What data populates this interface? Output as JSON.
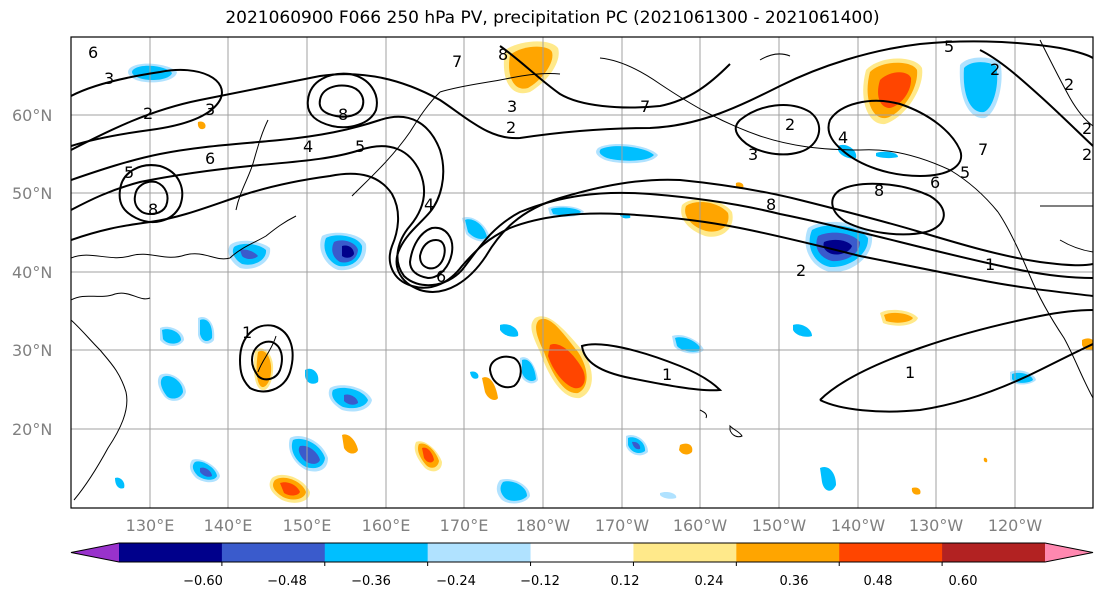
{
  "title": "2021060900 F066 250 hPa PV, precipitation PC (2021061300 - 2021061400)",
  "lat_labels": [
    "60°N",
    "50°N",
    "40°N",
    "30°N",
    "20°N"
  ],
  "lon_labels": [
    "130°E",
    "140°E",
    "150°E",
    "160°E",
    "170°E",
    "180°W",
    "170°W",
    "160°W",
    "150°W",
    "140°W",
    "130°W",
    "120°W"
  ],
  "colorbar": {
    "ticks": [
      "−0.60",
      "−0.48",
      "−0.36",
      "−0.24",
      "−0.12",
      "0.12",
      "0.24",
      "0.36",
      "0.48",
      "0.60"
    ],
    "colors": [
      "#9932cc",
      "#00008b",
      "#3a5bcc",
      "#00bfff",
      "#b0e2ff",
      "#ffffff",
      "#ffe98a",
      "#ffa500",
      "#ff4500",
      "#b22222",
      "#ff88b0"
    ]
  },
  "contour_labels": [
    "6",
    "3",
    "2",
    "3",
    "8",
    "7",
    "3",
    "2",
    "5",
    "8",
    "2",
    "4",
    "5",
    "5",
    "6",
    "8",
    "6",
    "2",
    "1",
    "2",
    "3",
    "4",
    "7",
    "8",
    "5",
    "6",
    "4",
    "8",
    "7",
    "2",
    "1",
    "1",
    "1",
    "2",
    "2"
  ],
  "colors": {
    "pv_contour": "#000000",
    "grid": "#a0a0a0",
    "coast": "#000000"
  }
}
